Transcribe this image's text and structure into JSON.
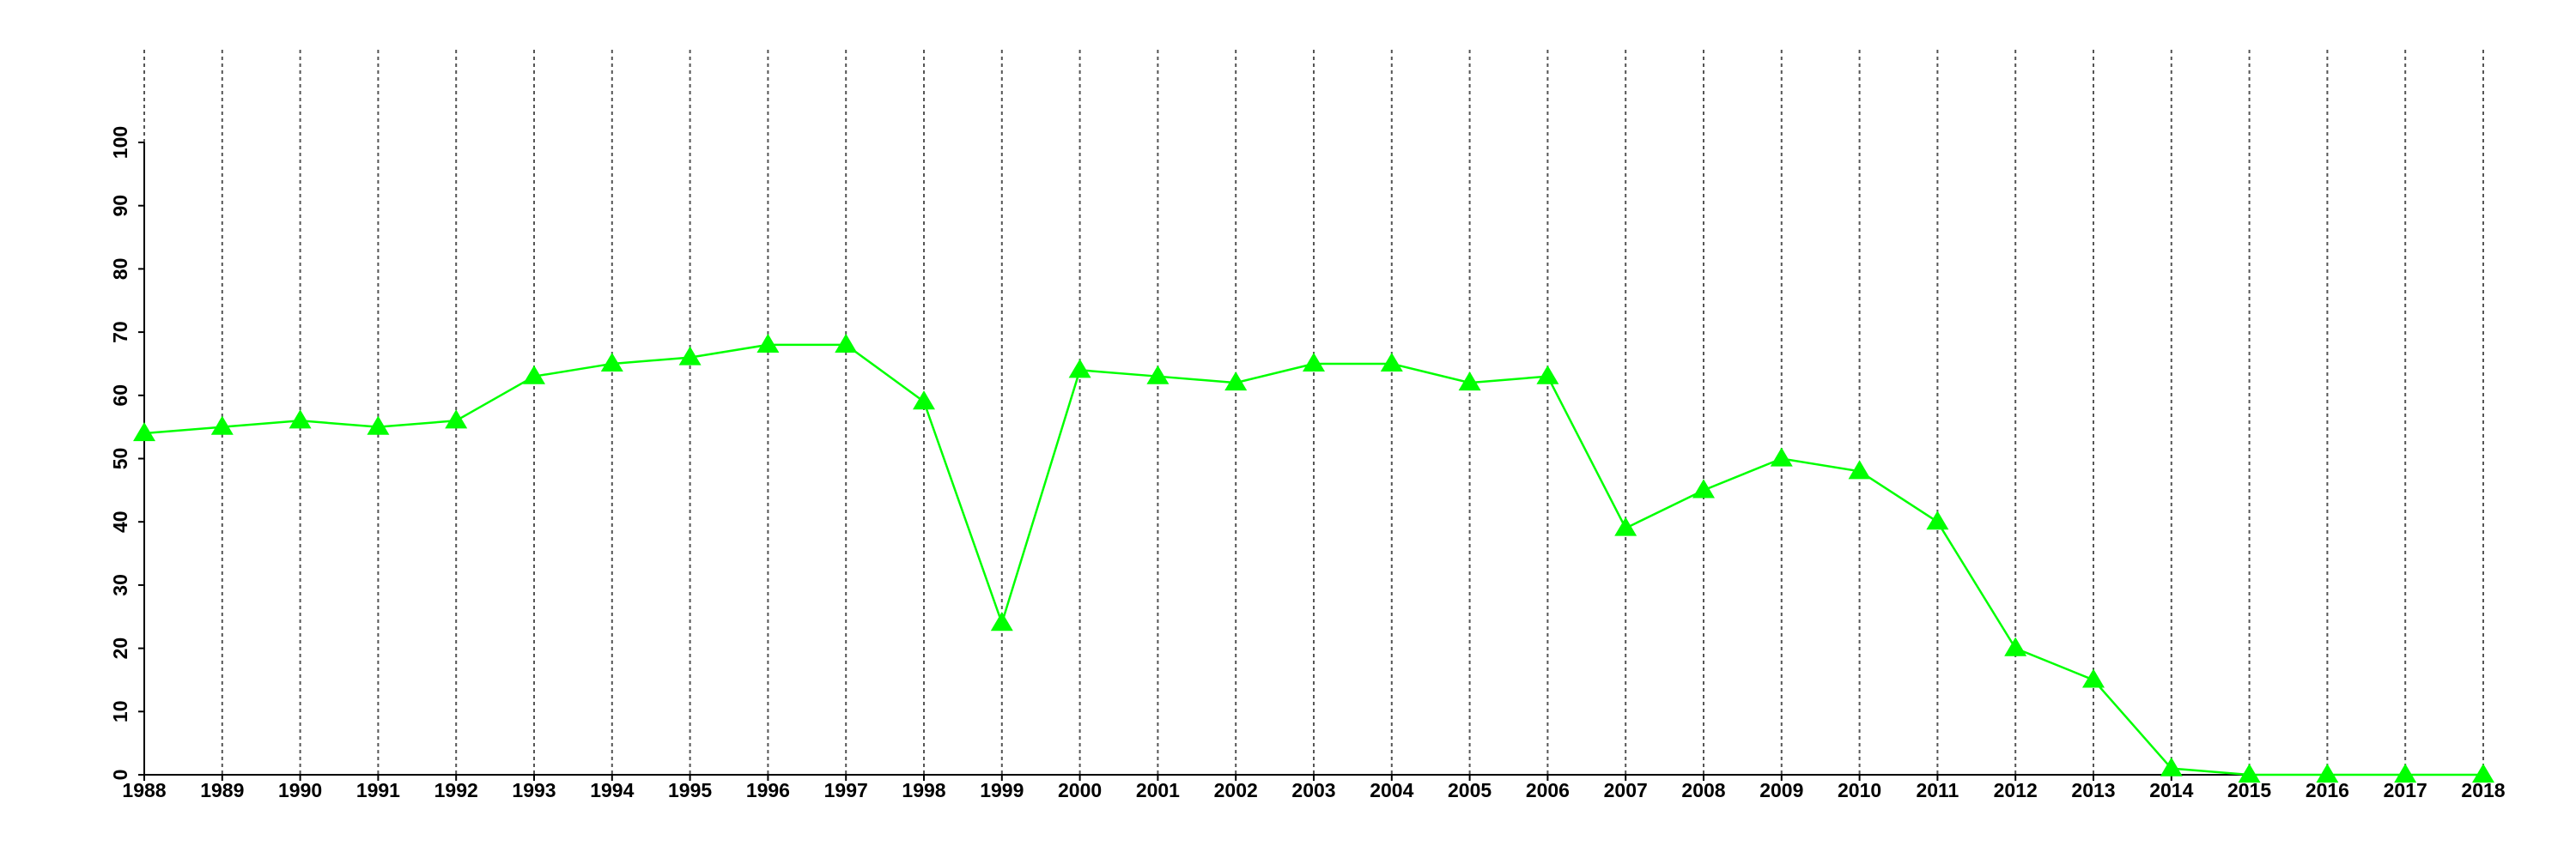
{
  "chart_data": {
    "type": "line",
    "x": [
      1988,
      1989,
      1990,
      1991,
      1992,
      1993,
      1994,
      1995,
      1996,
      1997,
      1998,
      1999,
      2000,
      2001,
      2002,
      2003,
      2004,
      2005,
      2006,
      2007,
      2008,
      2009,
      2010,
      2011,
      2012,
      2013,
      2014,
      2015,
      2016,
      2017,
      2018
    ],
    "series": [
      {
        "color": "#00ff00",
        "marker": "triangle",
        "values": [
          54,
          55,
          56,
          55,
          56,
          63,
          65,
          66,
          68,
          68,
          59,
          24,
          64,
          63,
          62,
          65,
          65,
          62,
          63,
          39,
          45,
          50,
          48,
          40,
          20,
          15,
          1,
          0,
          0,
          0,
          0
        ]
      }
    ],
    "xlim": [
      1988,
      2018
    ],
    "xticks": [
      1988,
      1989,
      1990,
      1991,
      1992,
      1993,
      1994,
      1995,
      1996,
      1997,
      1998,
      1999,
      2000,
      2001,
      2002,
      2003,
      2004,
      2005,
      2006,
      2007,
      2008,
      2009,
      2010,
      2011,
      2012,
      2013,
      2014,
      2015,
      2016,
      2017,
      2018
    ],
    "ylim": [
      0,
      100
    ],
    "yticks": [
      0,
      10,
      20,
      30,
      40,
      50,
      60,
      70,
      80,
      90,
      100
    ],
    "xgrid": true
  }
}
